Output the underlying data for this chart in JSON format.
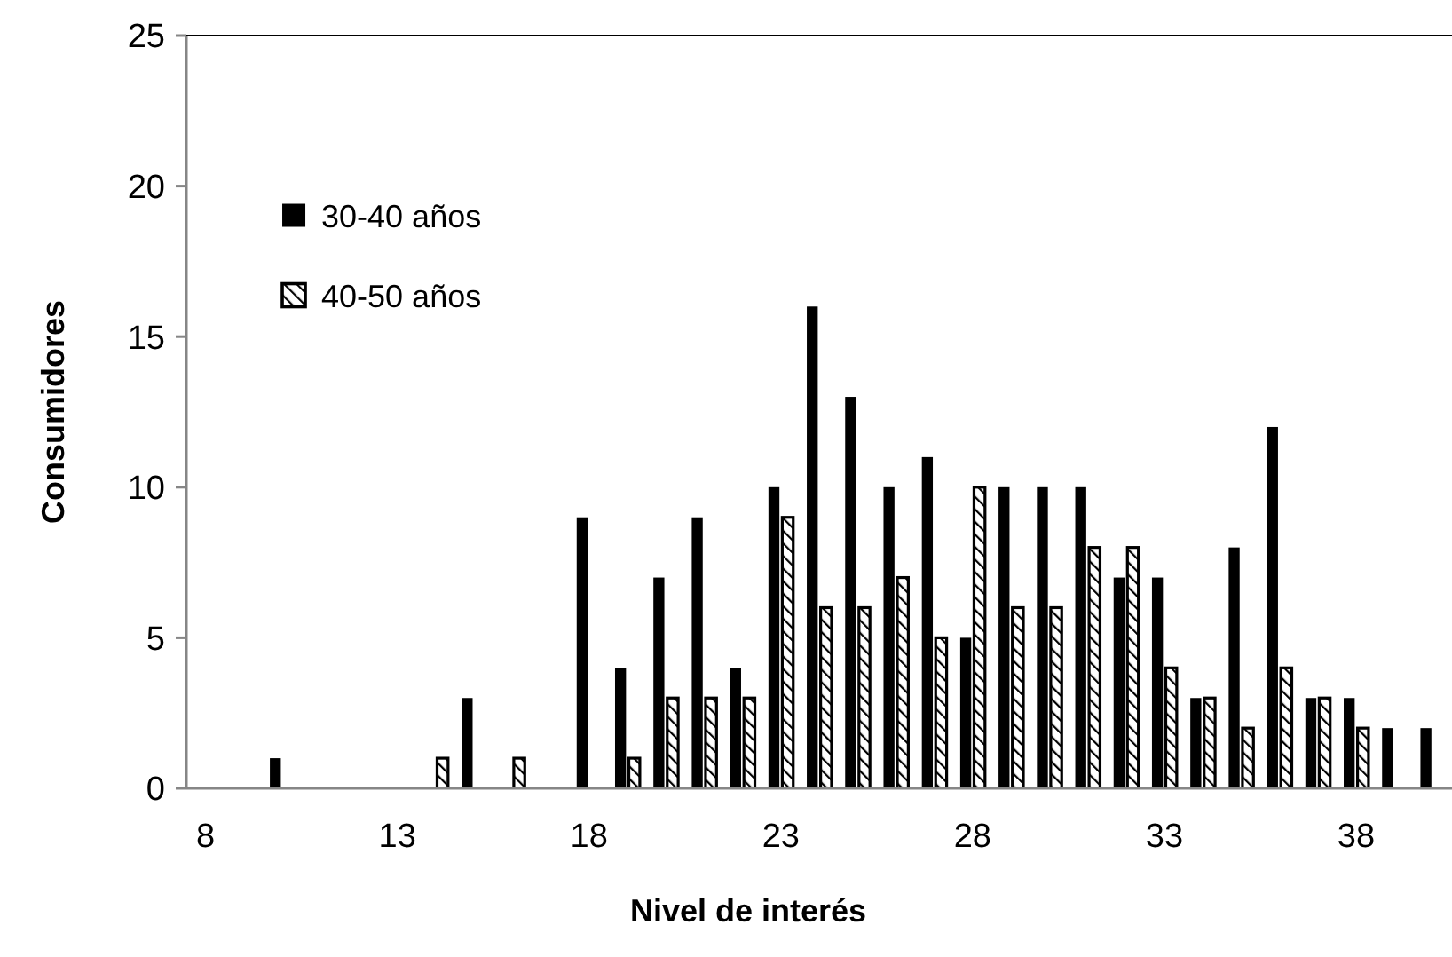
{
  "chart_data": {
    "type": "bar",
    "xlabel": "Nivel de interés",
    "ylabel": "Consumidores",
    "x": [
      10,
      11,
      12,
      13,
      14,
      15,
      16,
      17,
      18,
      19,
      20,
      21,
      22,
      23,
      24,
      25,
      26,
      27,
      28,
      29,
      30,
      31,
      32,
      33,
      34,
      35,
      36,
      37,
      38,
      39,
      40
    ],
    "series": [
      {
        "name": "30-40 años",
        "color": "#000000",
        "values": [
          1,
          0,
          0,
          0,
          0,
          3,
          0,
          0,
          9,
          4,
          7,
          9,
          4,
          10,
          16,
          13,
          10,
          11,
          5,
          10,
          10,
          10,
          7,
          7,
          3,
          8,
          12,
          3,
          3,
          2,
          2
        ]
      },
      {
        "name": "40-50 años",
        "color": "#000000",
        "values": [
          0,
          0,
          0,
          0,
          1,
          0,
          1,
          0,
          0,
          1,
          3,
          3,
          3,
          9,
          6,
          6,
          7,
          5,
          10,
          6,
          6,
          8,
          8,
          4,
          3,
          2,
          4,
          3,
          2,
          0,
          null
        ]
      }
    ],
    "xlim": [
      7.5,
      40.5
    ],
    "xticks": [
      8,
      13,
      18,
      23,
      28,
      33,
      38
    ],
    "ylim": [
      0,
      25
    ],
    "yticks": [
      0,
      5,
      10,
      15,
      20,
      25
    ],
    "grid": false,
    "legend": "top left"
  }
}
